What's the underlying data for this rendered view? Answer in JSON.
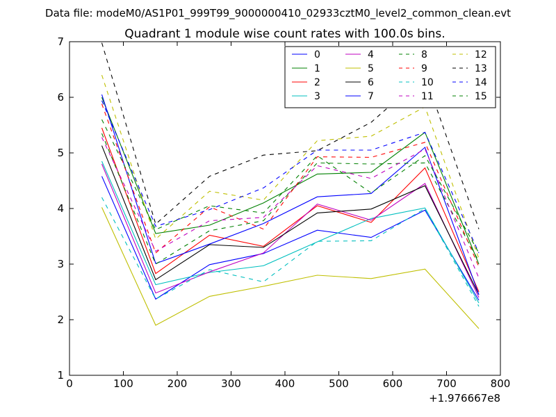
{
  "figure": {
    "suptitle": "Data file: modeM0/AS1P01_999T99_9000000410_02933cztM0_level2_common_clean.evt",
    "x_offset_label": "+1.976667e8"
  },
  "chart_data": {
    "type": "line",
    "title": "Quadrant 1 module wise count rates with 100.0s bins.",
    "xlabel": "",
    "ylabel": "",
    "xlim": [
      0,
      800
    ],
    "ylim": [
      1,
      7
    ],
    "xticks": [
      0,
      100,
      200,
      300,
      400,
      500,
      600,
      700,
      800
    ],
    "yticks": [
      1,
      2,
      3,
      4,
      5,
      6,
      7
    ],
    "grid": false,
    "legend_position": "top-right",
    "legend_columns": 4,
    "x": [
      60,
      160,
      260,
      360,
      460,
      560,
      660,
      760
    ],
    "series": [
      {
        "name": "0",
        "color": "#0000ff",
        "dash": "solid",
        "values": [
          4.58,
          2.37,
          2.99,
          3.19,
          3.61,
          3.48,
          3.97,
          2.35
        ]
      },
      {
        "name": "1",
        "color": "#008000",
        "dash": "solid",
        "values": [
          6.0,
          3.55,
          3.7,
          4.1,
          4.62,
          4.65,
          5.37,
          3.0
        ]
      },
      {
        "name": "2",
        "color": "#ff0000",
        "dash": "solid",
        "values": [
          5.45,
          2.83,
          3.52,
          3.32,
          4.05,
          3.75,
          4.73,
          2.5
        ]
      },
      {
        "name": "3",
        "color": "#00bfbf",
        "dash": "solid",
        "values": [
          4.85,
          2.63,
          2.85,
          2.97,
          3.4,
          3.82,
          4.01,
          2.3
        ]
      },
      {
        "name": "4",
        "color": "#bf00bf",
        "dash": "solid",
        "values": [
          4.8,
          2.48,
          2.86,
          3.2,
          4.08,
          3.79,
          4.45,
          2.4
        ]
      },
      {
        "name": "5",
        "color": "#bfbf00",
        "dash": "solid",
        "values": [
          4.02,
          1.9,
          2.42,
          2.6,
          2.8,
          2.74,
          2.91,
          1.84
        ]
      },
      {
        "name": "6",
        "color": "#000000",
        "dash": "solid",
        "values": [
          5.13,
          2.72,
          3.35,
          3.3,
          3.92,
          3.99,
          4.41,
          2.45
        ]
      },
      {
        "name": "7",
        "color": "#0000ff",
        "dash": "solid",
        "values": [
          6.05,
          3.01,
          3.36,
          3.73,
          4.21,
          4.27,
          5.1,
          2.45
        ]
      },
      {
        "name": "8",
        "color": "#008000",
        "dash": "dashed",
        "values": [
          5.35,
          3.0,
          3.6,
          3.78,
          4.82,
          4.8,
          4.82,
          3.05
        ]
      },
      {
        "name": "9",
        "color": "#ff0000",
        "dash": "dashed",
        "values": [
          5.88,
          3.2,
          4.03,
          3.63,
          4.93,
          4.92,
          5.19,
          2.95
        ]
      },
      {
        "name": "10",
        "color": "#00bfbf",
        "dash": "dashed",
        "values": [
          4.2,
          2.37,
          2.9,
          2.68,
          3.41,
          3.42,
          4.0,
          2.24
        ]
      },
      {
        "name": "11",
        "color": "#bf00bf",
        "dash": "dashed",
        "values": [
          5.28,
          3.23,
          3.78,
          3.84,
          4.77,
          4.54,
          5.07,
          2.75
        ]
      },
      {
        "name": "12",
        "color": "#bfbf00",
        "dash": "dashed",
        "values": [
          6.4,
          3.45,
          4.31,
          4.15,
          5.22,
          5.3,
          5.83,
          3.1
        ]
      },
      {
        "name": "13",
        "color": "#000000",
        "dash": "dashed",
        "values": [
          6.98,
          3.72,
          4.58,
          4.96,
          5.04,
          5.55,
          6.4,
          3.63
        ]
      },
      {
        "name": "14",
        "color": "#0000ff",
        "dash": "dashed",
        "values": [
          5.94,
          3.68,
          3.98,
          4.37,
          5.05,
          5.05,
          5.37,
          3.2
        ]
      },
      {
        "name": "15",
        "color": "#008000",
        "dash": "dashed",
        "values": [
          5.6,
          3.62,
          4.05,
          3.92,
          4.95,
          4.28,
          4.95,
          3.2
        ]
      }
    ]
  }
}
